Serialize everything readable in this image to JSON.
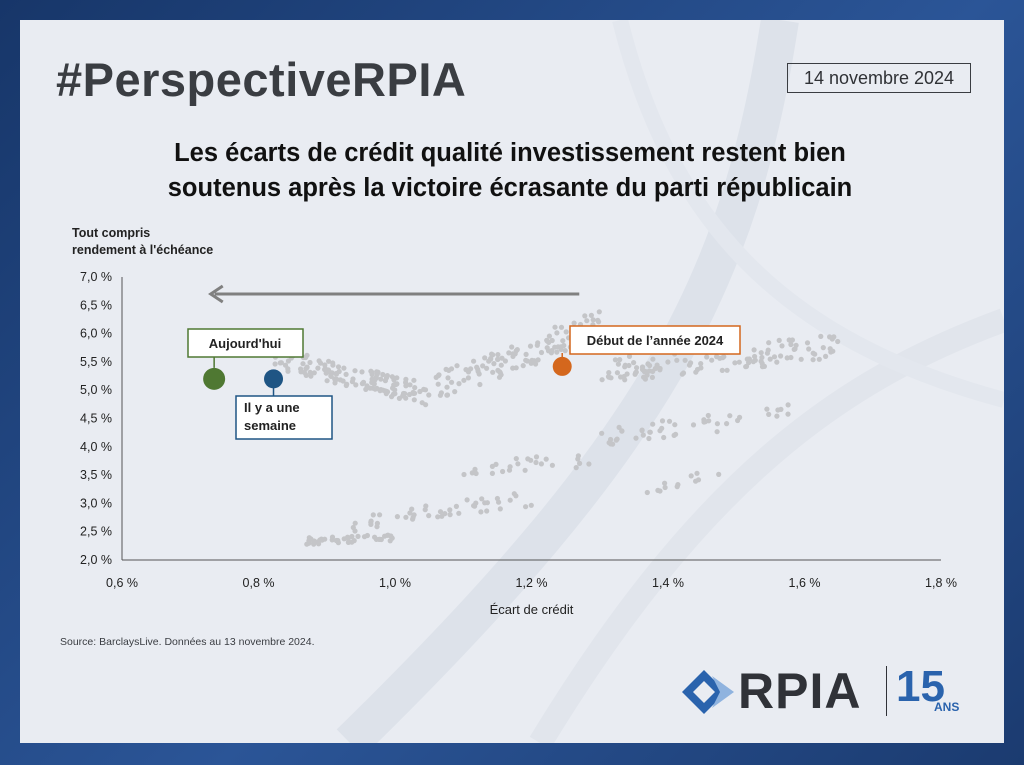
{
  "header": {
    "hashtag": "#PerspectiveRPIA",
    "date": "14 novembre 2024",
    "title_lines": [
      "Les écarts de crédit qualité investissement restent bien",
      "soutenus après la victoire écrasante du parti républicain"
    ]
  },
  "footer": {
    "source": "Source: BarclaysLive. Données au 13 novembre 2024."
  },
  "logo": {
    "text": "RPIA",
    "years": "15",
    "years_suffix": "ANS"
  },
  "colors": {
    "scatter": "#c4c5c8",
    "today": "#4f7832",
    "week_ago": "#1f5584",
    "start_2024": "#d4671d",
    "arrow": "#808080",
    "logo_blue": "#2a63ad"
  },
  "chart_data": {
    "type": "scatter",
    "ylabel_lines": [
      "Tout compris",
      "rendement à l'échéance"
    ],
    "xlabel": "Écart de crédit",
    "xlim": [
      0.6,
      1.8
    ],
    "ylim": [
      2.0,
      7.0
    ],
    "x_ticks": [
      0.6,
      0.8,
      1.0,
      1.2,
      1.4,
      1.6,
      1.8
    ],
    "x_tick_labels": [
      "0,6 %",
      "0,8 %",
      "1,0 %",
      "1,2 %",
      "1,4 %",
      "1,6 %",
      "1,8 %"
    ],
    "y_ticks": [
      2.0,
      2.5,
      3.0,
      3.5,
      4.0,
      4.5,
      5.0,
      5.5,
      6.0,
      6.5,
      7.0
    ],
    "y_tick_labels": [
      "2,0 %",
      "2,5 %",
      "3,0 %",
      "3,5 %",
      "4,0 %",
      "4,5 %",
      "5,0 %",
      "5,5 %",
      "6,0 %",
      "6,5 %",
      "7,0 %"
    ],
    "grid": false,
    "highlights": [
      {
        "id": "today",
        "label": "Aujourd'hui",
        "x": 0.735,
        "y": 5.2,
        "color": "#4f7832"
      },
      {
        "id": "week_ago",
        "label_lines": [
          "Il y a une",
          "semaine"
        ],
        "x": 0.822,
        "y": 5.2,
        "color": "#1f5584"
      },
      {
        "id": "start_2024",
        "label": "Début de l’année 2024",
        "x": 1.245,
        "y": 5.42,
        "color": "#d4671d"
      }
    ],
    "arrow": {
      "from": [
        1.27,
        6.7
      ],
      "to": [
        0.73,
        6.7
      ],
      "direction": "left"
    },
    "clusters": [
      {
        "x0": 0.82,
        "x1": 1.05,
        "y0": 4.7,
        "y1": 5.8,
        "trend": -0.6,
        "count": 140
      },
      {
        "x0": 1.06,
        "x1": 1.3,
        "y0": 4.8,
        "y1": 6.4,
        "trend": 0.7,
        "count": 110
      },
      {
        "x0": 1.3,
        "x1": 1.65,
        "y0": 5.0,
        "y1": 6.1,
        "trend": 0.4,
        "count": 120
      },
      {
        "x0": 0.87,
        "x1": 1.0,
        "y0": 2.22,
        "y1": 2.5,
        "trend": 0.2,
        "count": 40
      },
      {
        "x0": 0.93,
        "x1": 1.2,
        "y0": 2.45,
        "y1": 3.25,
        "trend": 0.6,
        "count": 45
      },
      {
        "x0": 1.1,
        "x1": 1.3,
        "y0": 3.4,
        "y1": 4.0,
        "trend": 0.3,
        "count": 25
      },
      {
        "x0": 1.3,
        "x1": 1.58,
        "y0": 3.95,
        "y1": 4.8,
        "trend": 0.5,
        "count": 45
      },
      {
        "x0": 1.36,
        "x1": 1.48,
        "y0": 3.1,
        "y1": 3.7,
        "trend": 0.6,
        "count": 12
      }
    ]
  }
}
